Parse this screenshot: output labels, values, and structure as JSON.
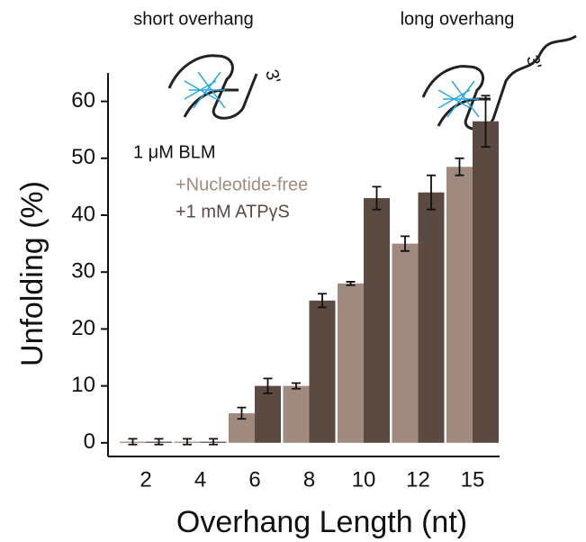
{
  "chart_data": {
    "type": "bar",
    "annotations": [
      "short overhang",
      "long overhang",
      "1 μM BLM",
      "3'",
      "3'"
    ],
    "x_label": "Overhang Length (nt)",
    "y_label": "Unfolding (%)",
    "categories": [
      "2",
      "4",
      "6",
      "8",
      "10",
      "12",
      "15"
    ],
    "series": [
      {
        "name": "+Nucleotide-free",
        "color": "#a08a7e",
        "values": [
          0.2,
          0.2,
          5.2,
          10,
          28,
          35,
          48.5
        ],
        "errors": [
          0.5,
          0.5,
          1,
          0.5,
          0.3,
          1.3,
          1.5
        ]
      },
      {
        "name": "+1 mM ATPγS",
        "color": "#5b4a42",
        "values": [
          0.2,
          0.2,
          10,
          25,
          43,
          44,
          56.5
        ],
        "errors": [
          0.5,
          0.5,
          1.3,
          1.2,
          2,
          3,
          4.5
        ]
      }
    ],
    "ylim": [
      -2.4,
      65
    ],
    "yticks": [
      0,
      10,
      20,
      30,
      40,
      50,
      60
    ],
    "grid": false
  }
}
